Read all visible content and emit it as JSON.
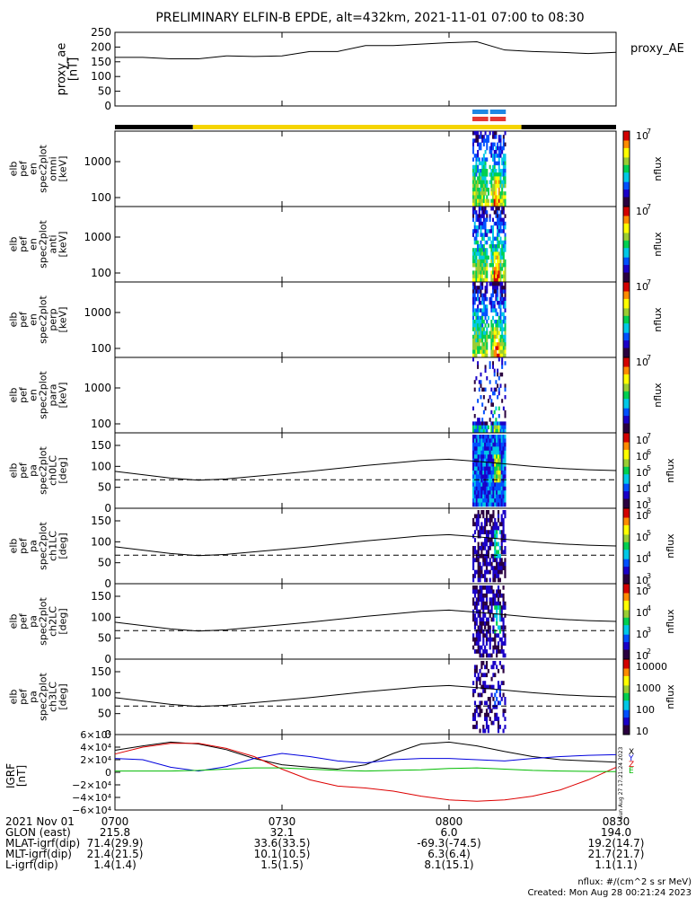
{
  "title": "PRELIMINARY ELFIN-B EPDE, alt=432km, 2021-11-01 07:00 to 08:30",
  "panels": {
    "proxy_ae": {
      "ylabel": [
        "proxy_ae",
        "[nT]"
      ],
      "yticks": [
        "250",
        "200",
        "150",
        "100",
        "50",
        "0"
      ],
      "legend": "proxy_AE"
    },
    "spec_en": [
      {
        "id": "omni",
        "ylabel": [
          "elb",
          "pef",
          "en",
          "spec2plot",
          "omni",
          "[keV]"
        ],
        "yticks": [
          "1000",
          "100"
        ],
        "ctick_top": "10",
        "cexp_top": "7",
        "cunit": "nflux"
      },
      {
        "id": "anti",
        "ylabel": [
          "elb",
          "pef",
          "en",
          "spec2plot",
          "anti",
          "[keV]"
        ],
        "yticks": [
          "1000",
          "100"
        ],
        "ctick_top": "10",
        "cexp_top": "7",
        "cunit": "nflux"
      },
      {
        "id": "perp",
        "ylabel": [
          "elb",
          "pef",
          "en",
          "spec2plot",
          "perp",
          "[keV]"
        ],
        "yticks": [
          "1000",
          "100"
        ],
        "ctick_top": "10",
        "cexp_top": "7",
        "cunit": "nflux"
      },
      {
        "id": "para",
        "ylabel": [
          "elb",
          "pef",
          "en",
          "spec2plot",
          "para",
          "[keV]"
        ],
        "yticks": [
          "1000",
          "100"
        ],
        "ctick_top": "10",
        "cexp_top": "7",
        "cunit": "nflux"
      }
    ],
    "spec_pa": [
      {
        "id": "ch0",
        "ylabel": [
          "elb",
          "pef",
          "pa",
          "spec2plot",
          "ch0LC",
          "[deg]"
        ],
        "yticks": [
          "150",
          "100",
          "50",
          "0"
        ],
        "cticks": [
          "10",
          "10",
          "10",
          "10",
          "10"
        ],
        "cexps": [
          "7",
          "6",
          "5",
          "4",
          "3"
        ],
        "cunit": "nflux"
      },
      {
        "id": "ch1",
        "ylabel": [
          "elb",
          "pef",
          "pa",
          "spec2plot",
          "ch1LC",
          "[deg]"
        ],
        "yticks": [
          "150",
          "100",
          "50",
          "0"
        ],
        "cticks": [
          "10",
          "10",
          "10",
          "10"
        ],
        "cexps": [
          "6",
          "5",
          "4",
          "3"
        ],
        "cunit": "nflux"
      },
      {
        "id": "ch2",
        "ylabel": [
          "elb",
          "pef",
          "pa",
          "spec2plot",
          "ch2LC",
          "[deg]"
        ],
        "yticks": [
          "150",
          "100",
          "50",
          "0"
        ],
        "cticks": [
          "10",
          "10",
          "10",
          "10"
        ],
        "cexps": [
          "5",
          "4",
          "3",
          "2"
        ],
        "cunit": "nflux"
      },
      {
        "id": "ch3",
        "ylabel": [
          "elb",
          "pef",
          "pa",
          "spec2plot",
          "ch3LC",
          "[deg]"
        ],
        "yticks": [
          "150",
          "100",
          "50",
          "0"
        ],
        "cticks": [
          "10000",
          "1000",
          "100",
          "10"
        ],
        "cexps": [
          "",
          "",
          "",
          ""
        ],
        "cunit": "nflux"
      }
    ],
    "igrf": {
      "ylabel": [
        "IGRF",
        "[nT]"
      ],
      "yticks": [
        "6×10⁴",
        "4×10⁴",
        "2×10⁴",
        "0",
        "−2×10⁴",
        "−4×10⁴",
        "−6×10⁴"
      ],
      "legend": [
        "X",
        "Y",
        "Z",
        "E"
      ],
      "stamp": "Sun Aug 27 17:21:24 2023"
    }
  },
  "footer": {
    "rows": [
      {
        "label": "2021 Nov 01",
        "values": [
          "0700",
          "0730",
          "0800",
          "0830"
        ]
      },
      {
        "label": "GLON (east)",
        "values": [
          "215.8",
          "32.1",
          "6.0",
          "194.0"
        ]
      },
      {
        "label": "MLAT-igrf(dip)",
        "values": [
          "71.4(29.9)",
          "33.6(33.5)",
          "-69.3(-74.5)",
          "19.2(14.7)"
        ]
      },
      {
        "label": "MLT-igrf(dip)",
        "values": [
          "21.4(21.5)",
          "10.1(10.5)",
          "6.3(6.4)",
          "21.7(21.7)"
        ]
      },
      {
        "label": "L-igrf(dip)",
        "values": [
          "1.4(1.4)",
          "1.5(1.5)",
          "8.1(15.1)",
          "1.1(1.1)"
        ]
      }
    ],
    "units_note": "nflux: #/(cm^2 s sr MeV)",
    "created": "Created: Mon Aug 28 00:21:24 2023"
  },
  "chart_data": {
    "type": "line",
    "title": "PRELIMINARY ELFIN-B EPDE, alt=432km, 2021-11-01 07:00 to 08:30",
    "x_minutes_from_0700": [
      0,
      5,
      10,
      15,
      20,
      25,
      30,
      35,
      40,
      45,
      50,
      55,
      60,
      65,
      70,
      75,
      80,
      85,
      90
    ],
    "xlim_minutes": [
      0,
      90
    ],
    "xticks": [
      "0700",
      "0730",
      "0800",
      "0830"
    ],
    "proxy_ae": {
      "ylabel": "proxy_ae [nT]",
      "ylim": [
        0,
        250
      ],
      "values": [
        165,
        165,
        160,
        160,
        170,
        168,
        170,
        185,
        185,
        205,
        205,
        210,
        215,
        218,
        190,
        185,
        182,
        178,
        182
      ]
    },
    "pa_panels": {
      "ylim": [
        0,
        180
      ],
      "loss_cone_deg": [
        88,
        80,
        72,
        67,
        70,
        76,
        82,
        88,
        95,
        102,
        108,
        114,
        117,
        112,
        106,
        100,
        95,
        92,
        90
      ],
      "bounce_loss_cone_deg": 68
    },
    "igrf": {
      "ylabel": "IGRF [nT]",
      "ylim": [
        -60000,
        60000
      ],
      "series": [
        {
          "name": "X",
          "values": [
            35000,
            42000,
            48000,
            45000,
            36000,
            22000,
            12000,
            8000,
            5000,
            12000,
            30000,
            45000,
            48000,
            42000,
            33000,
            25000,
            20000,
            18000,
            16000
          ]
        },
        {
          "name": "Y",
          "values": [
            22000,
            20000,
            8000,
            2000,
            9000,
            22000,
            30000,
            25000,
            18000,
            15000,
            20000,
            22000,
            22000,
            20000,
            18000,
            22000,
            25000,
            27000,
            28000
          ]
        },
        {
          "name": "Z",
          "values": [
            29000,
            40000,
            46000,
            46000,
            38000,
            25000,
            5000,
            -12000,
            -22000,
            -25000,
            -30000,
            -38000,
            -44000,
            -46000,
            -44000,
            -38000,
            -28000,
            -12000,
            8000
          ]
        },
        {
          "name": "E",
          "values": [
            2000,
            2000,
            2000,
            3000,
            5000,
            7000,
            7000,
            5000,
            3000,
            2000,
            3000,
            4000,
            6000,
            7000,
            5000,
            3000,
            2000,
            1500,
            1000
          ]
        }
      ]
    },
    "state_bar": [
      {
        "from_min": 0,
        "to_min": 14,
        "color": "#000000"
      },
      {
        "from_min": 14,
        "to_min": 73,
        "color": "#f5d400"
      },
      {
        "from_min": 73,
        "to_min": 90,
        "color": "#000000"
      }
    ],
    "science_zone_markers": [
      {
        "from_min": 64.2,
        "to_min": 70.2,
        "colors": [
          "#1e88e5",
          "#e53935"
        ]
      }
    ],
    "spectrogram_window_min": [
      64.2,
      70.2
    ],
    "colorscale": [
      "#2a0040",
      "#1a00c8",
      "#0050ff",
      "#00c8e6",
      "#00d050",
      "#9acd32",
      "#ffff00",
      "#ff8c00",
      "#d40000"
    ]
  }
}
